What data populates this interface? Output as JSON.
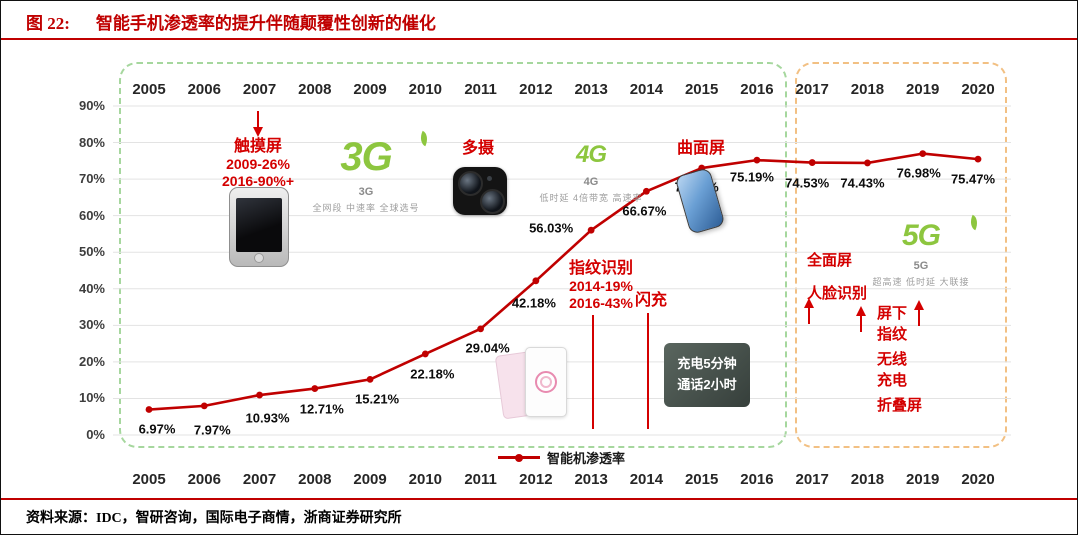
{
  "figure": {
    "label": "图 22:",
    "title": "智能手机渗透率的提升伴随颠覆性创新的催化",
    "source": "资料来源：IDC，智研咨询，国际电子商情，浙商证券研究所"
  },
  "chart_data": {
    "type": "line",
    "title": "智能手机渗透率的提升伴随颠覆性创新的催化",
    "x": [
      "2005",
      "2006",
      "2007",
      "2008",
      "2009",
      "2010",
      "2011",
      "2012",
      "2013",
      "2014",
      "2015",
      "2016",
      "2017",
      "2018",
      "2019",
      "2020"
    ],
    "series": [
      {
        "name": "智能机渗透率",
        "values": [
          6.97,
          7.97,
          10.93,
          12.71,
          15.21,
          22.18,
          29.04,
          42.18,
          56.03,
          66.67,
          73.02,
          75.19,
          74.53,
          74.43,
          76.98,
          75.47
        ]
      }
    ],
    "ylim": [
      0,
      90
    ],
    "y_ticks": [
      "0%",
      "10%",
      "20%",
      "30%",
      "40%",
      "50%",
      "60%",
      "70%",
      "80%",
      "90%"
    ],
    "grid": true,
    "data_labels": true,
    "legend_position": "bottom",
    "line_color": "#c00000"
  },
  "legend": {
    "label": "智能机渗透率"
  },
  "annotations": {
    "touch": {
      "title": "触摸屏",
      "line1": "2009-26%",
      "line2": "2016-90%+"
    },
    "g3": {
      "logo": "3G",
      "label": "3G",
      "caption": "全网段 中速率 全球选号"
    },
    "multi_cam": {
      "title": "多摄"
    },
    "g4": {
      "logo": "4G",
      "label": "4G",
      "caption": "低时延 4倍带宽 高速率"
    },
    "curved": {
      "title": "曲面屏"
    },
    "fingerprint": {
      "title": "指纹识别",
      "line1": "2014-19%",
      "line2": "2016-43%"
    },
    "flash_charge": {
      "title": "闪充"
    },
    "charge_ad": {
      "line1": "充电5分钟",
      "line2": "通话2小时"
    },
    "full_screen": {
      "title": "全面屏"
    },
    "face_id": {
      "title": "人脸识别"
    },
    "under_screen_fp": {
      "line1": "屏下",
      "line2": "指纹"
    },
    "wireless_charge": {
      "line1": "无线",
      "line2": "充电"
    },
    "foldable": {
      "title": "折叠屏"
    },
    "g5": {
      "logo": "5G",
      "label": "5G",
      "caption": "超高速 低时延 大联接"
    }
  },
  "colors": {
    "accent_red": "#c00000",
    "annotation_red": "#d40000",
    "logo_green": "#8dc63f",
    "era_box_green": "#a6d79e",
    "era_box_orange": "#f2c083"
  }
}
